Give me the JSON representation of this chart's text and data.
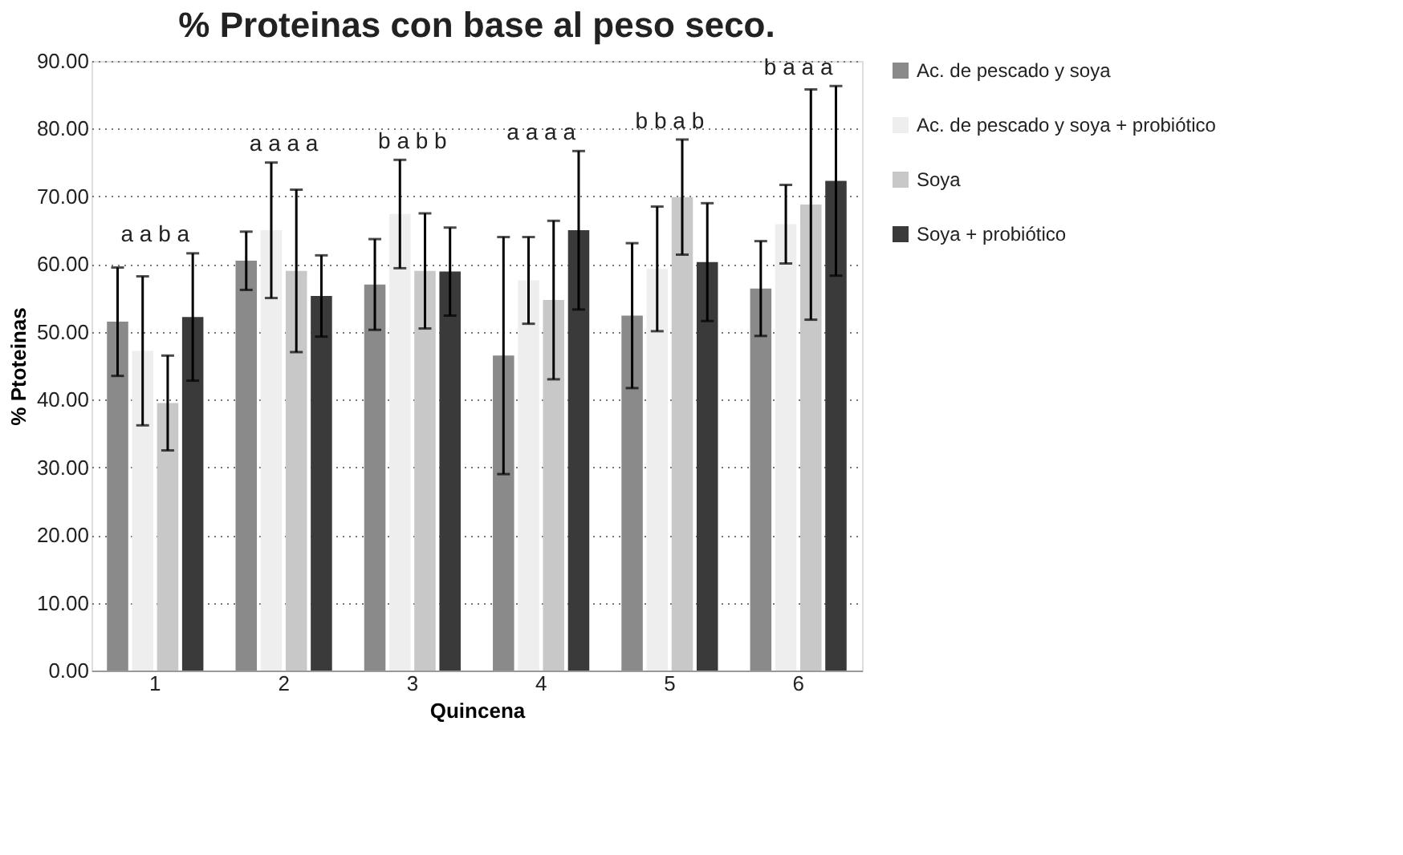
{
  "chart_data": {
    "type": "bar",
    "title": "% Proteinas  con base  al peso seco.",
    "xlabel": "Quincena",
    "ylabel": "% Ptoteinas",
    "categories": [
      "1",
      "2",
      "3",
      "4",
      "5",
      "6"
    ],
    "series": [
      {
        "name": "Ac. de pescado y soya",
        "color": "#8a8a8a",
        "values": [
          51.5,
          60.5,
          57,
          46.5,
          52.4,
          56.4
        ],
        "errors": [
          8,
          4.3,
          6.7,
          17.5,
          10.7,
          7
        ]
      },
      {
        "name": "Ac. de pescado y soya + probiótico",
        "color": "#eeeeee",
        "values": [
          47.2,
          65,
          67.4,
          57.6,
          59.3,
          65.9
        ],
        "errors": [
          11,
          10,
          8,
          6.4,
          9.2,
          5.8
        ]
      },
      {
        "name": "Soya",
        "color": "#c8c8c8",
        "values": [
          39.5,
          59,
          59,
          54.7,
          69.9,
          68.8
        ],
        "errors": [
          7,
          12,
          8.5,
          11.7,
          8.5,
          17
        ]
      },
      {
        "name": "Soya + probiótico",
        "color": "#3a3a3a",
        "values": [
          52.2,
          55.3,
          58.9,
          65,
          60.3,
          72.3
        ],
        "errors": [
          9.4,
          6,
          6.5,
          11.7,
          8.7,
          14
        ]
      }
    ],
    "ylim": [
      0,
      90
    ],
    "yticks": [
      {
        "value": 0,
        "label": "0.00"
      },
      {
        "value": 10,
        "label": "10.00"
      },
      {
        "value": 20,
        "label": "20.00"
      },
      {
        "value": 30,
        "label": "30.00"
      },
      {
        "value": 40,
        "label": "40.00"
      },
      {
        "value": 50,
        "label": "50.00"
      },
      {
        "value": 60,
        "label": "60.00"
      },
      {
        "value": 70,
        "label": "70.00"
      },
      {
        "value": 80,
        "label": "80.00"
      },
      {
        "value": 90,
        "label": "90.00"
      }
    ],
    "annotations": [
      "a a b a",
      "a a a a",
      "b a b b",
      "a a a a",
      "b b a b",
      "b a a a"
    ],
    "grid": "y",
    "legend": "right"
  }
}
